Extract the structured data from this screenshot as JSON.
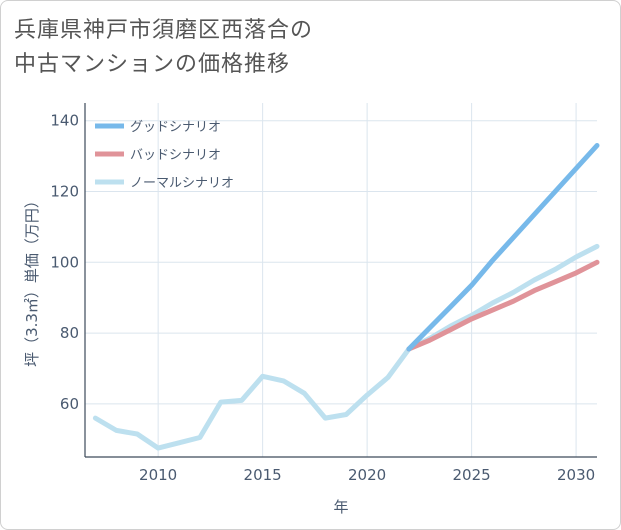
{
  "title_line1": "兵庫県神戸市須磨区西落合の",
  "title_line2": "中古マンションの価格推移",
  "chart_data": {
    "type": "line",
    "xlabel": "年",
    "ylabel": "坪（3.3㎡）単価（万円）",
    "xlim": [
      2006.5,
      2031
    ],
    "ylim": [
      45,
      145
    ],
    "x_ticks": [
      2010,
      2015,
      2020,
      2025,
      2030
    ],
    "y_ticks": [
      60,
      80,
      100,
      120,
      140
    ],
    "grid": true,
    "legend_position": "top-left",
    "series": [
      {
        "name": "グッドシナリオ",
        "color": "#77b9ea",
        "x": [
          2022,
          2023,
          2024,
          2025,
          2026,
          2027,
          2028,
          2029,
          2030,
          2031
        ],
        "y": [
          75.5,
          81.5,
          87.5,
          93.5,
          100.5,
          107,
          113.5,
          120,
          126.5,
          133
        ]
      },
      {
        "name": "バッドシナリオ",
        "color": "#e09399",
        "x": [
          2022,
          2023,
          2024,
          2025,
          2026,
          2027,
          2028,
          2029,
          2030,
          2031
        ],
        "y": [
          75.5,
          78,
          81,
          84,
          86.5,
          89,
          92,
          94.5,
          97,
          100
        ]
      },
      {
        "name": "ノーマルシナリオ",
        "color": "#bde0ef",
        "x": [
          2007,
          2008,
          2009,
          2010,
          2011,
          2012,
          2013,
          2014,
          2015,
          2016,
          2017,
          2018,
          2019,
          2020,
          2021,
          2022,
          2023,
          2024,
          2025,
          2026,
          2027,
          2028,
          2029,
          2030,
          2031
        ],
        "y": [
          56,
          52.5,
          51.5,
          47.5,
          49,
          50.5,
          60.5,
          61,
          67.8,
          66.5,
          63,
          56,
          57,
          62.5,
          67.5,
          75.5,
          78.5,
          82,
          85,
          88.5,
          91.5,
          95,
          98,
          101.5,
          104.5
        ]
      }
    ]
  }
}
